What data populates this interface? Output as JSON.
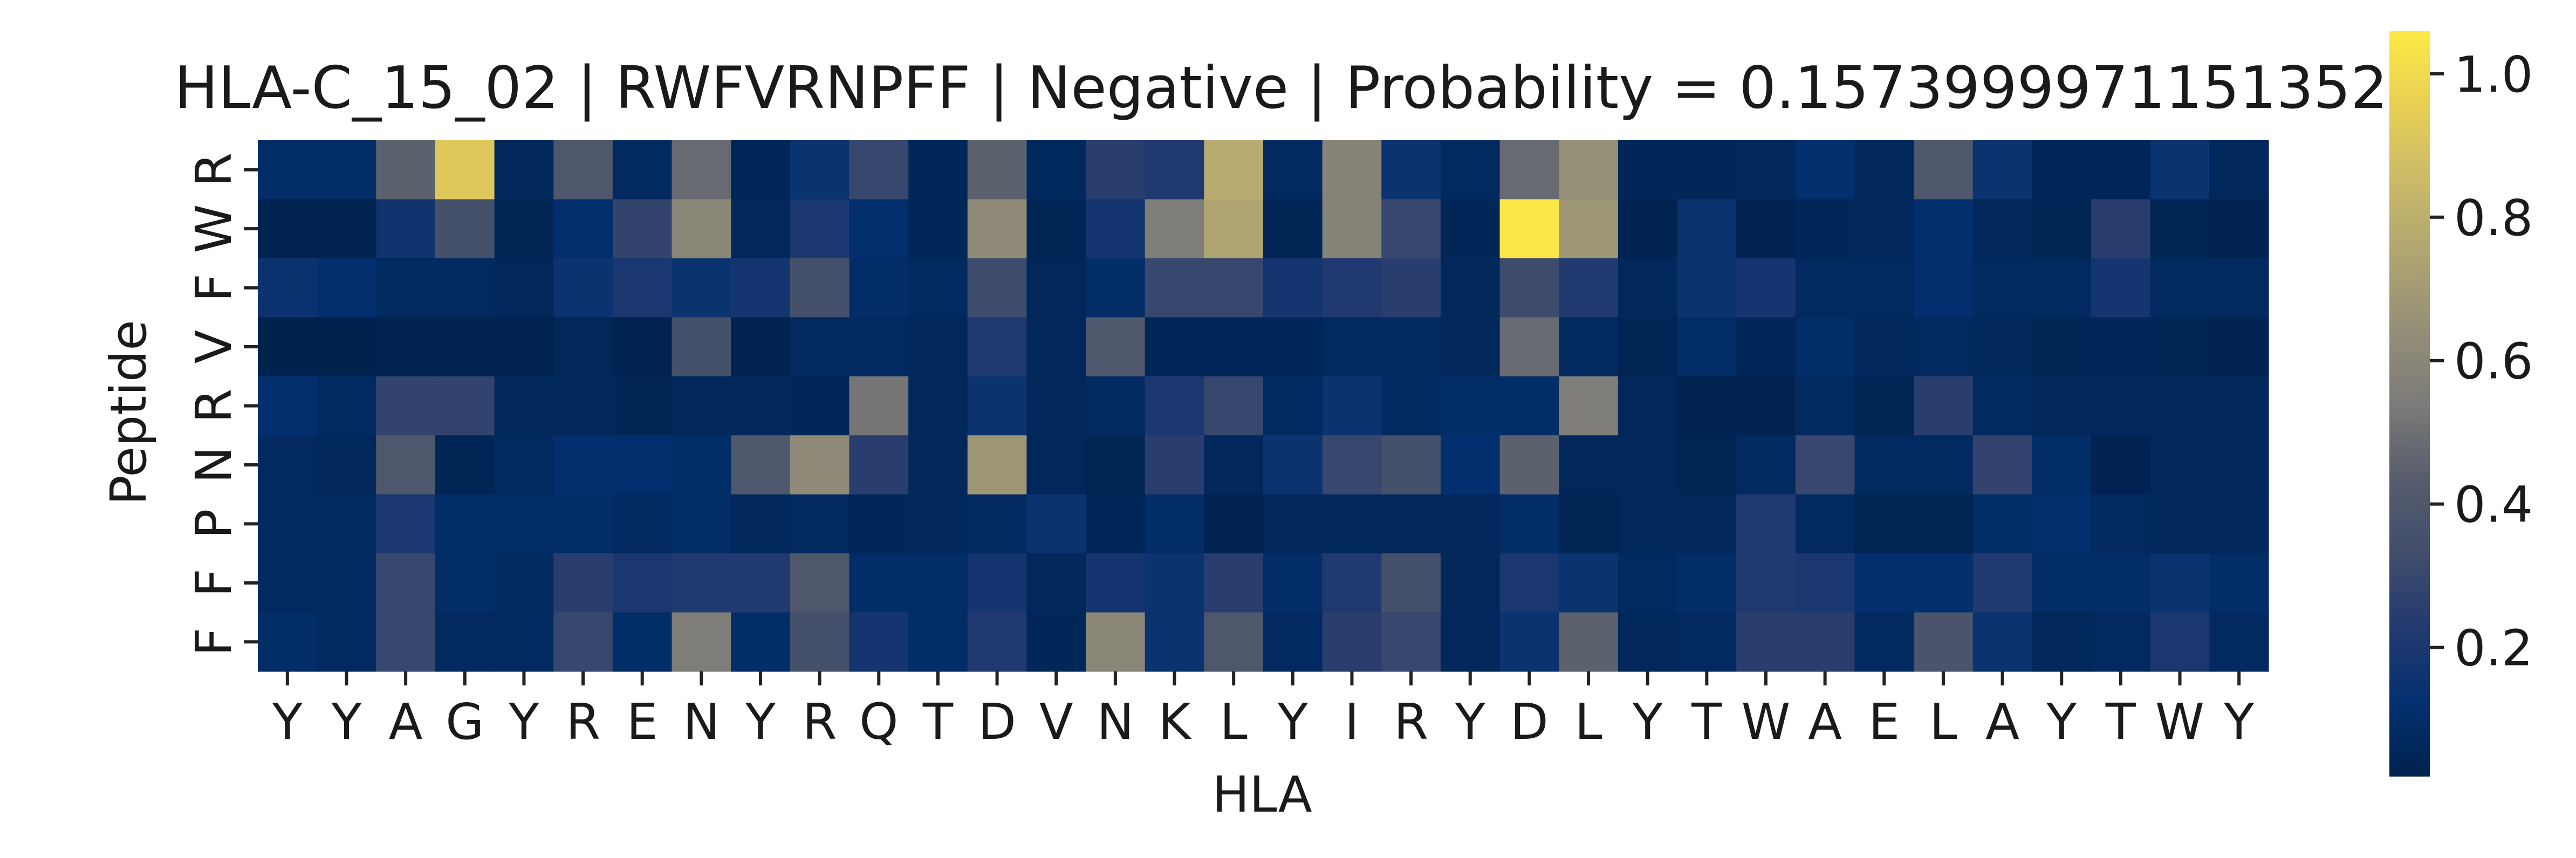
{
  "chart_data": {
    "type": "heatmap",
    "title": "HLA-C_15_02 | RWFVRNPFF | Negative | Probability = 0.15739999711513​52",
    "title_text": "HLA-C_15_02 | RWFVRNPFF | Negative | Probability = 0.1573999971151352",
    "xlabel": "HLA",
    "ylabel": "Peptide",
    "x_ticks": [
      "Y",
      "Y",
      "A",
      "G",
      "Y",
      "R",
      "E",
      "N",
      "Y",
      "R",
      "Q",
      "T",
      "D",
      "V",
      "N",
      "K",
      "L",
      "Y",
      "I",
      "R",
      "Y",
      "D",
      "L",
      "Y",
      "T",
      "W",
      "A",
      "E",
      "L",
      "A",
      "Y",
      "T",
      "W",
      "Y"
    ],
    "y_ticks": [
      "R",
      "W",
      "F",
      "V",
      "R",
      "N",
      "P",
      "F",
      "F"
    ],
    "colormap": "cividis",
    "vmin": 0.02,
    "vmax": 1.06,
    "colorbar_ticks": [
      "0.2",
      "0.4",
      "0.6",
      "0.8",
      "1.0"
    ],
    "colorbar_tick_values": [
      0.2,
      0.4,
      0.6,
      0.8,
      1.0
    ],
    "values": [
      [
        0.1,
        0.1,
        0.45,
        0.92,
        0.06,
        0.4,
        0.08,
        0.48,
        0.05,
        0.15,
        0.3,
        0.05,
        0.45,
        0.07,
        0.25,
        0.22,
        0.78,
        0.08,
        0.58,
        0.15,
        0.08,
        0.48,
        0.65,
        0.05,
        0.05,
        0.06,
        0.12,
        0.06,
        0.4,
        0.15,
        0.05,
        0.05,
        0.14,
        0.06
      ],
      [
        0.03,
        0.03,
        0.17,
        0.35,
        0.04,
        0.12,
        0.28,
        0.6,
        0.06,
        0.2,
        0.12,
        0.05,
        0.62,
        0.04,
        0.18,
        0.55,
        0.75,
        0.04,
        0.58,
        0.3,
        0.05,
        1.05,
        0.68,
        0.03,
        0.14,
        0.03,
        0.05,
        0.06,
        0.12,
        0.06,
        0.04,
        0.25,
        0.04,
        0.03
      ],
      [
        0.15,
        0.12,
        0.08,
        0.08,
        0.06,
        0.15,
        0.2,
        0.15,
        0.18,
        0.35,
        0.1,
        0.08,
        0.32,
        0.06,
        0.1,
        0.3,
        0.3,
        0.18,
        0.22,
        0.25,
        0.06,
        0.32,
        0.22,
        0.06,
        0.15,
        0.18,
        0.08,
        0.08,
        0.12,
        0.08,
        0.08,
        0.18,
        0.08,
        0.08
      ],
      [
        0.02,
        0.02,
        0.03,
        0.03,
        0.03,
        0.06,
        0.03,
        0.35,
        0.03,
        0.08,
        0.08,
        0.06,
        0.22,
        0.06,
        0.4,
        0.05,
        0.05,
        0.05,
        0.08,
        0.08,
        0.06,
        0.48,
        0.08,
        0.04,
        0.1,
        0.05,
        0.1,
        0.06,
        0.08,
        0.06,
        0.04,
        0.05,
        0.04,
        0.03
      ],
      [
        0.12,
        0.08,
        0.28,
        0.28,
        0.06,
        0.06,
        0.04,
        0.06,
        0.06,
        0.05,
        0.52,
        0.06,
        0.15,
        0.06,
        0.08,
        0.2,
        0.3,
        0.08,
        0.15,
        0.08,
        0.1,
        0.1,
        0.55,
        0.06,
        0.03,
        0.03,
        0.08,
        0.04,
        0.25,
        0.08,
        0.06,
        0.06,
        0.06,
        0.06
      ],
      [
        0.08,
        0.06,
        0.4,
        0.04,
        0.08,
        0.12,
        0.12,
        0.1,
        0.4,
        0.62,
        0.25,
        0.06,
        0.68,
        0.06,
        0.04,
        0.25,
        0.06,
        0.15,
        0.3,
        0.35,
        0.12,
        0.45,
        0.06,
        0.06,
        0.04,
        0.08,
        0.3,
        0.08,
        0.08,
        0.28,
        0.1,
        0.03,
        0.06,
        0.06
      ],
      [
        0.08,
        0.08,
        0.2,
        0.1,
        0.1,
        0.1,
        0.08,
        0.1,
        0.06,
        0.08,
        0.05,
        0.06,
        0.08,
        0.15,
        0.05,
        0.1,
        0.03,
        0.06,
        0.06,
        0.06,
        0.06,
        0.1,
        0.04,
        0.06,
        0.06,
        0.22,
        0.08,
        0.04,
        0.04,
        0.1,
        0.12,
        0.08,
        0.06,
        0.06
      ],
      [
        0.08,
        0.08,
        0.3,
        0.1,
        0.08,
        0.25,
        0.2,
        0.22,
        0.22,
        0.4,
        0.1,
        0.1,
        0.18,
        0.06,
        0.18,
        0.15,
        0.25,
        0.1,
        0.22,
        0.35,
        0.06,
        0.2,
        0.15,
        0.08,
        0.1,
        0.22,
        0.2,
        0.12,
        0.12,
        0.22,
        0.1,
        0.1,
        0.15,
        0.1
      ],
      [
        0.1,
        0.08,
        0.3,
        0.08,
        0.08,
        0.3,
        0.1,
        0.55,
        0.1,
        0.35,
        0.18,
        0.1,
        0.22,
        0.05,
        0.6,
        0.15,
        0.4,
        0.08,
        0.25,
        0.3,
        0.06,
        0.15,
        0.45,
        0.06,
        0.08,
        0.25,
        0.25,
        0.08,
        0.38,
        0.15,
        0.06,
        0.08,
        0.2,
        0.08
      ]
    ]
  }
}
